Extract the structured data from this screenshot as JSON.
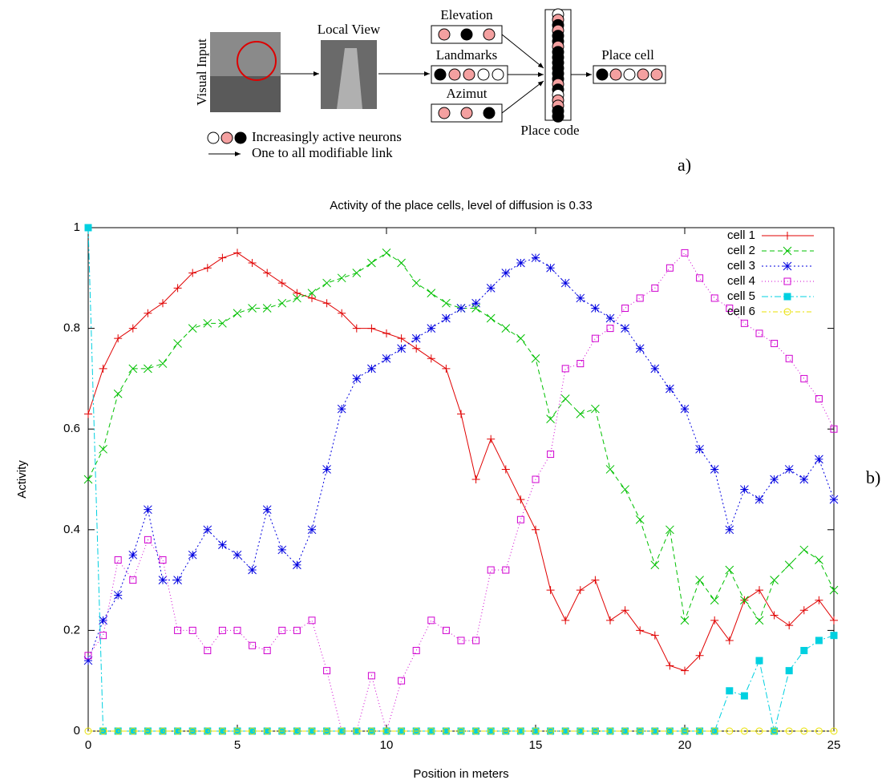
{
  "figure": {
    "visual_input": "Visual Input",
    "local_view": "Local View",
    "elevation": "Elevation",
    "landmarks": "Landmarks",
    "azimut": "Azimut",
    "place_code": "Place code",
    "place_cell": "Place cell",
    "legend_neurons": "Increasingly active neurons",
    "legend_link": "One to all modifiable link",
    "label_a": "a)",
    "label_b": "b)"
  },
  "chart_data": {
    "type": "line",
    "title": "Activity of the place cells, level of diffusion is 0.33",
    "x_label": "Position in meters",
    "y_label": "Activity",
    "x": [
      0,
      0.5,
      1,
      1.5,
      2,
      2.5,
      3,
      3.5,
      4,
      4.5,
      5,
      5.5,
      6,
      6.5,
      7,
      7.5,
      8,
      8.5,
      9,
      9.5,
      10,
      10.5,
      11,
      11.5,
      12,
      12.5,
      13,
      13.5,
      14,
      14.5,
      15,
      15.5,
      16,
      16.5,
      17,
      17.5,
      18,
      18.5,
      19,
      19.5,
      20,
      20.5,
      21,
      21.5,
      22,
      22.5,
      23,
      23.5,
      24,
      24.5,
      25
    ],
    "series": [
      {
        "name": "cell 1",
        "color": "#e00000",
        "marker": "plus",
        "dash": "none",
        "values": [
          0.63,
          0.72,
          0.78,
          0.8,
          0.83,
          0.85,
          0.88,
          0.91,
          0.92,
          0.94,
          0.95,
          0.93,
          0.91,
          0.89,
          0.87,
          0.86,
          0.85,
          0.83,
          0.8,
          0.8,
          0.79,
          0.78,
          0.76,
          0.74,
          0.72,
          0.63,
          0.5,
          0.58,
          0.52,
          0.46,
          0.4,
          0.28,
          0.22,
          0.28,
          0.3,
          0.22,
          0.24,
          0.2,
          0.19,
          0.13,
          0.12,
          0.15,
          0.22,
          0.18,
          0.26,
          0.28,
          0.23,
          0.21,
          0.24,
          0.26,
          0.22
        ]
      },
      {
        "name": "cell 2",
        "color": "#00c000",
        "marker": "cross",
        "dash": "6,4",
        "values": [
          0.5,
          0.56,
          0.67,
          0.72,
          0.72,
          0.73,
          0.77,
          0.8,
          0.81,
          0.81,
          0.83,
          0.84,
          0.84,
          0.85,
          0.86,
          0.87,
          0.89,
          0.9,
          0.91,
          0.93,
          0.95,
          0.93,
          0.89,
          0.87,
          0.85,
          0.84,
          0.84,
          0.82,
          0.8,
          0.78,
          0.74,
          0.62,
          0.66,
          0.63,
          0.64,
          0.52,
          0.48,
          0.42,
          0.33,
          0.4,
          0.22,
          0.3,
          0.26,
          0.32,
          0.26,
          0.22,
          0.3,
          0.33,
          0.36,
          0.34,
          0.28
        ]
      },
      {
        "name": "cell 3",
        "color": "#0000e0",
        "marker": "star",
        "dash": "2,3",
        "values": [
          0.14,
          0.22,
          0.27,
          0.35,
          0.44,
          0.3,
          0.3,
          0.35,
          0.4,
          0.37,
          0.35,
          0.32,
          0.44,
          0.36,
          0.33,
          0.4,
          0.52,
          0.64,
          0.7,
          0.72,
          0.74,
          0.76,
          0.78,
          0.8,
          0.82,
          0.84,
          0.85,
          0.88,
          0.91,
          0.93,
          0.94,
          0.92,
          0.89,
          0.86,
          0.84,
          0.82,
          0.8,
          0.76,
          0.72,
          0.68,
          0.64,
          0.56,
          0.52,
          0.4,
          0.48,
          0.46,
          0.5,
          0.52,
          0.5,
          0.54,
          0.46
        ]
      },
      {
        "name": "cell 4",
        "color": "#d000d0",
        "marker": "square",
        "dash": "1,3",
        "values": [
          0.15,
          0.19,
          0.34,
          0.3,
          0.38,
          0.34,
          0.2,
          0.2,
          0.16,
          0.2,
          0.2,
          0.17,
          0.16,
          0.2,
          0.2,
          0.22,
          0.12,
          0,
          0,
          0.11,
          0,
          0.1,
          0.16,
          0.22,
          0.2,
          0.18,
          0.18,
          0.32,
          0.32,
          0.42,
          0.5,
          0.55,
          0.72,
          0.73,
          0.78,
          0.8,
          0.84,
          0.86,
          0.88,
          0.92,
          0.95,
          0.9,
          0.86,
          0.84,
          0.81,
          0.79,
          0.77,
          0.74,
          0.7,
          0.66,
          0.6
        ]
      },
      {
        "name": "cell 5",
        "color": "#00d0e0",
        "marker": "filled-square",
        "dash": "8,3,2,3",
        "values": [
          1,
          0,
          0,
          0,
          0,
          0,
          0,
          0,
          0,
          0,
          0,
          0,
          0,
          0,
          0,
          0,
          0,
          0,
          0,
          0,
          0,
          0,
          0,
          0,
          0,
          0,
          0,
          0,
          0,
          0,
          0,
          0,
          0,
          0,
          0,
          0,
          0,
          0,
          0,
          0,
          0,
          0,
          0,
          0.08,
          0.07,
          0.14,
          0,
          0.12,
          0.16,
          0.18,
          0.19
        ]
      },
      {
        "name": "cell 6",
        "color": "#e8e000",
        "marker": "circle",
        "dash": "6,3,2,3",
        "values": [
          0,
          0,
          0,
          0,
          0,
          0,
          0,
          0,
          0,
          0,
          0,
          0,
          0,
          0,
          0,
          0,
          0,
          0,
          0,
          0,
          0,
          0,
          0,
          0,
          0,
          0,
          0,
          0,
          0,
          0,
          0,
          0,
          0,
          0,
          0,
          0,
          0,
          0,
          0,
          0,
          0,
          0,
          0,
          0,
          0,
          0,
          0,
          0,
          0,
          0,
          0
        ]
      }
    ],
    "xlim": [
      0,
      25
    ],
    "ylim": [
      0,
      1
    ],
    "xticks": [
      0,
      5,
      10,
      15,
      20,
      25
    ],
    "yticks": [
      0,
      0.2,
      0.4,
      0.6,
      0.8,
      1
    ],
    "legend": "top-right"
  }
}
